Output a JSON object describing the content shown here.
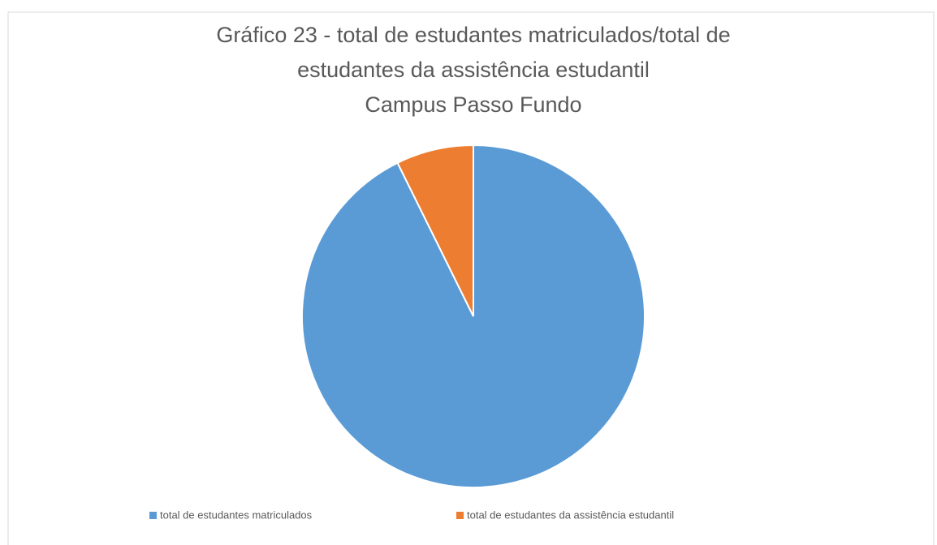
{
  "chart_data": {
    "type": "pie",
    "title": [
      "Gráfico 23 - total de estudantes matriculados/total de",
      "estudantes da assistência estudantil",
      "Campus Passo Fundo"
    ],
    "categories": [
      "total de estudantes matriculados",
      "total de estudantes da assistência estudantil"
    ],
    "values": [
      92.7,
      7.3
    ],
    "colors": [
      "#5b9bd5",
      "#ed7d31"
    ],
    "legend": "bottom"
  }
}
